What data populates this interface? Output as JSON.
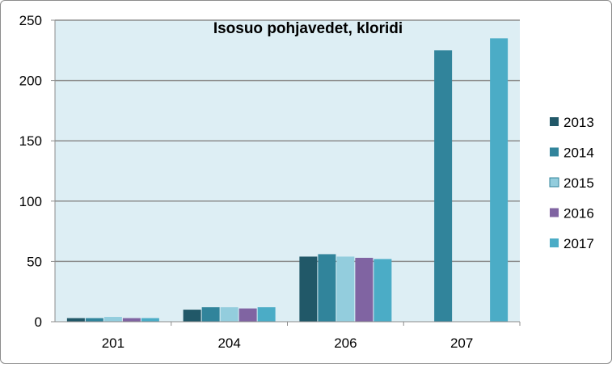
{
  "chart_data": {
    "type": "bar",
    "title": "Isosuo pohjavedet, kloridi",
    "xlabel": "",
    "ylabel": "",
    "categories": [
      "201",
      "204",
      "206",
      "207"
    ],
    "ylim": [
      0,
      250
    ],
    "yticks": [
      0,
      50,
      100,
      150,
      200,
      250
    ],
    "grid": true,
    "legend_position": "right",
    "plot_background": "#DDEEF4",
    "series": [
      {
        "name": "2013",
        "color": "#215868",
        "values": [
          3,
          10,
          54,
          null
        ]
      },
      {
        "name": "2014",
        "color": "#31849B",
        "values": [
          3,
          12,
          56,
          225
        ]
      },
      {
        "name": "2015",
        "color": "#93CDDD",
        "values": [
          4,
          12,
          54,
          null
        ]
      },
      {
        "name": "2016",
        "color": "#8064A2",
        "values": [
          3,
          11,
          53,
          null
        ]
      },
      {
        "name": "2017",
        "color": "#4BACC6",
        "values": [
          3,
          12,
          52,
          235
        ]
      }
    ]
  }
}
